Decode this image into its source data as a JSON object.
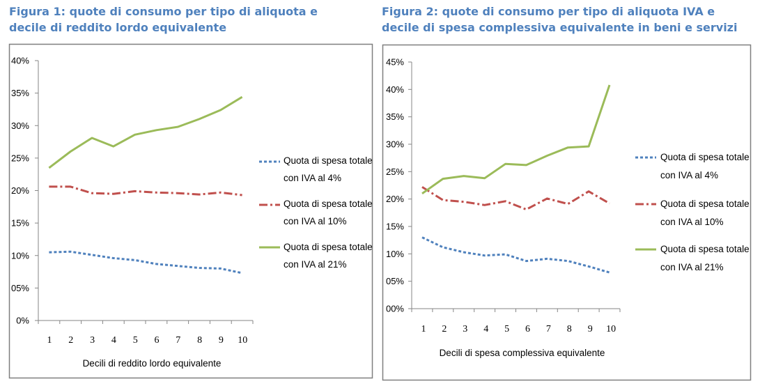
{
  "chart_data": [
    {
      "type": "line",
      "title": "Figura 1: quote di consumo per tipo di aliquota e decile di reddito lordo equivalente",
      "xlabel": "Decili di reddito lordo equivalente",
      "ylabel": "",
      "categories": [
        "1",
        "2",
        "3",
        "4",
        "5",
        "6",
        "7",
        "8",
        "9",
        "10"
      ],
      "ylim": [
        0,
        0.4
      ],
      "yticks": [
        "0%",
        "05%",
        "10%",
        "15%",
        "20%",
        "25%",
        "30%",
        "35%",
        "40%"
      ],
      "grid": false,
      "legend_position": "right",
      "series": [
        {
          "name": "Quota di spesa totale con IVA al 4%",
          "color": "#4f81bd",
          "dash": "dotted",
          "values": [
            0.105,
            0.106,
            0.101,
            0.096,
            0.093,
            0.087,
            0.084,
            0.081,
            0.08,
            0.073
          ]
        },
        {
          "name": "Quota di spesa totale con IVA al 10%",
          "color": "#c0504d",
          "dash": "dashdot",
          "values": [
            0.206,
            0.206,
            0.196,
            0.195,
            0.199,
            0.197,
            0.196,
            0.194,
            0.197,
            0.193
          ]
        },
        {
          "name": "Quota di spesa totale con IVA al 21%",
          "color": "#9bbb59",
          "dash": "solid",
          "values": [
            0.235,
            0.26,
            0.281,
            0.268,
            0.286,
            0.293,
            0.298,
            0.31,
            0.324,
            0.344
          ]
        }
      ]
    },
    {
      "type": "line",
      "title": "Figura 2: quote di consumo per tipo di aliquota IVA e decile di spesa complessiva equivalente in beni e servizi",
      "xlabel": "Decili di spesa complessiva equivalente",
      "ylabel": "",
      "categories": [
        "1",
        "2",
        "3",
        "4",
        "5",
        "6",
        "7",
        "8",
        "9",
        "10"
      ],
      "ylim": [
        0,
        0.45
      ],
      "yticks": [
        "00%",
        "05%",
        "10%",
        "15%",
        "20%",
        "25%",
        "30%",
        "35%",
        "40%",
        "45%"
      ],
      "grid": false,
      "legend_position": "right",
      "series": [
        {
          "name": "Quota di spesa totale con IVA al 4%",
          "color": "#4f81bd",
          "dash": "dotted",
          "values": [
            0.13,
            0.112,
            0.103,
            0.097,
            0.099,
            0.087,
            0.091,
            0.087,
            0.077,
            0.066
          ]
        },
        {
          "name": "Quota di spesa totale con IVA al 10%",
          "color": "#c0504d",
          "dash": "dashdot",
          "values": [
            0.222,
            0.198,
            0.195,
            0.189,
            0.196,
            0.181,
            0.201,
            0.191,
            0.214,
            0.192
          ]
        },
        {
          "name": "Quota di spesa totale con IVA al 21%",
          "color": "#9bbb59",
          "dash": "solid",
          "values": [
            0.21,
            0.237,
            0.242,
            0.238,
            0.264,
            0.262,
            0.279,
            0.294,
            0.296,
            0.408
          ]
        }
      ]
    }
  ]
}
